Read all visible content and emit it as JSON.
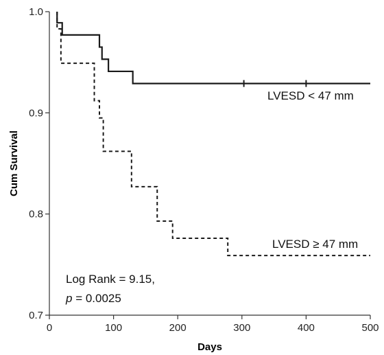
{
  "chart_data": {
    "type": "line",
    "xlabel": "Days",
    "ylabel": "Cum Survival",
    "xlim": [
      0,
      500
    ],
    "ylim": [
      0.7,
      1.0
    ],
    "x_ticks": [
      0,
      100,
      200,
      300,
      400,
      500
    ],
    "y_ticks": [
      0.7,
      0.8,
      0.9,
      1.0
    ],
    "x_tick_labels": [
      "0",
      "100",
      "200",
      "300",
      "400",
      "500"
    ],
    "y_tick_labels": [
      "0.7",
      "0.8",
      "0.9",
      "1.0"
    ],
    "grid": false,
    "series": [
      {
        "name": "LVESD < 47 mm",
        "style": "solid",
        "color": "#1a1a1a",
        "step_x": [
          12,
          12,
          20,
          78,
          82,
          92,
          130,
          500
        ],
        "step_y": [
          1.0,
          0.989,
          0.977,
          0.965,
          0.953,
          0.941,
          0.929,
          0.929
        ],
        "censor_x": [
          303,
          400
        ]
      },
      {
        "name": "LVESD ≥ 47 mm",
        "style": "dashed",
        "color": "#1a1a1a",
        "step_x": [
          12,
          12,
          18,
          70,
          78,
          84,
          128,
          168,
          192,
          278,
          500
        ],
        "step_y": [
          1.0,
          0.983,
          0.949,
          0.912,
          0.895,
          0.862,
          0.827,
          0.793,
          0.776,
          0.759,
          0.759
        ],
        "censor_x": []
      }
    ],
    "annotations": {
      "label_line1": "LVESD < 47 mm",
      "label_line2": "LVESD ≥ 47 mm",
      "stat_line1": "Log Rank = 9.15,",
      "stat_p": "p",
      "stat_rest": " = 0.0025"
    }
  }
}
